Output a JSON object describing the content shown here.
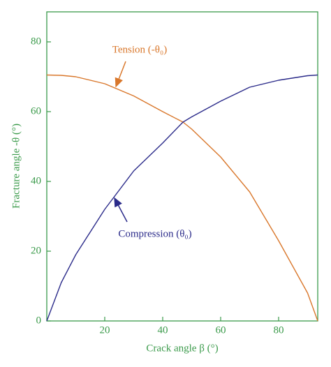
{
  "chart_data": {
    "type": "line",
    "x_label": "Crack angle β (°)",
    "y_label": "Fracture angle -θ (°)",
    "annotations": [
      "Tension (-θ₀)",
      "Compression (θ₀)"
    ],
    "x": [
      0,
      5,
      10,
      20,
      30,
      40,
      47,
      50,
      60,
      70,
      80,
      90,
      93.5
    ],
    "series": [
      {
        "name": "Tension",
        "color": "#d9772b",
        "values": [
          70.5,
          70.4,
          70,
          68,
          64.5,
          60,
          57,
          55,
          47,
          37,
          23,
          8,
          0
        ]
      },
      {
        "name": "Compression",
        "color": "#2b2b8a",
        "values": [
          0,
          11,
          19,
          32,
          43,
          51,
          57,
          58.5,
          63,
          67,
          69,
          70.3,
          70.5
        ]
      }
    ],
    "xlim": [
      0,
      93.5
    ],
    "ylim": [
      0,
      88.6
    ],
    "xticks": [
      20,
      40,
      60,
      80
    ],
    "yticks": [
      0,
      20,
      40,
      60,
      80
    ],
    "axis_color": "#3a9a4a"
  }
}
